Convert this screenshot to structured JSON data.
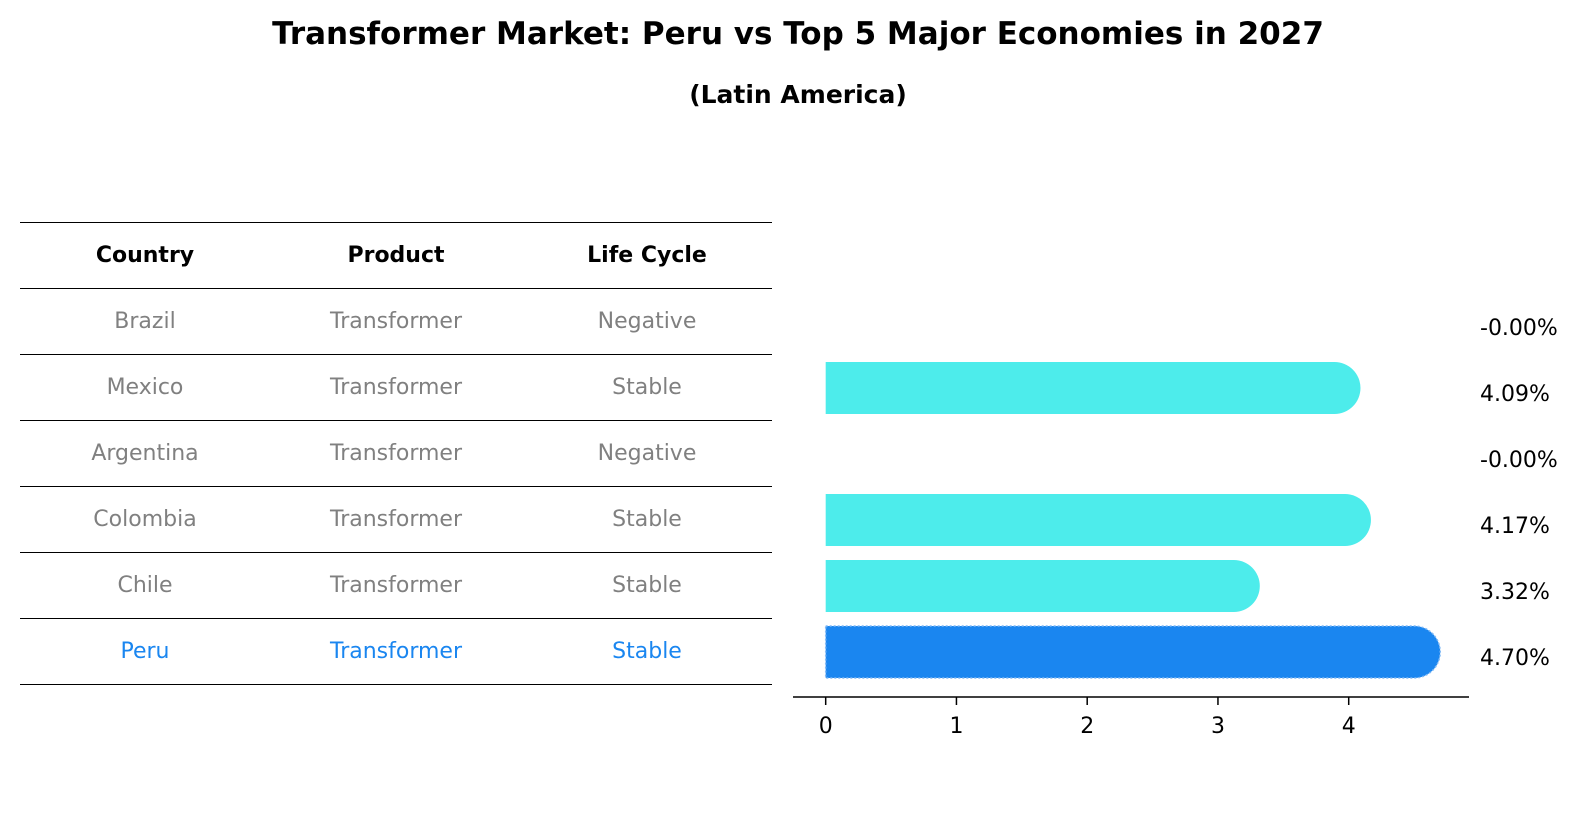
{
  "title": "Transformer Market: Peru vs Top 5 Major Economies in 2027",
  "subtitle": "(Latin America)",
  "table": {
    "headers": [
      "Country",
      "Product",
      "Life Cycle"
    ],
    "rows": [
      [
        "Brazil",
        "Transformer",
        "Negative"
      ],
      [
        "Mexico",
        "Transformer",
        "Stable"
      ],
      [
        "Argentina",
        "Transformer",
        "Negative"
      ],
      [
        "Colombia",
        "Transformer",
        "Stable"
      ],
      [
        "Chile",
        "Transformer",
        "Stable"
      ],
      [
        "Peru",
        "Transformer",
        "Stable"
      ]
    ],
    "highlight_row": "Peru"
  },
  "chart_data": {
    "type": "bar",
    "orientation": "horizontal",
    "categories": [
      "Brazil",
      "Mexico",
      "Argentina",
      "Colombia",
      "Chile",
      "Peru"
    ],
    "values": [
      -0.0,
      4.09,
      -0.0,
      4.17,
      3.32,
      4.7
    ],
    "value_labels": [
      "-0.00%",
      "4.09%",
      "-0.00%",
      "4.17%",
      "3.32%",
      "4.70%"
    ],
    "xticks": [
      0,
      1,
      2,
      3,
      4
    ],
    "xlim": [
      -0.25,
      4.92
    ],
    "colors": {
      "default": "#4deceb",
      "highlight": "#1a86f0"
    },
    "highlight": "Peru"
  }
}
